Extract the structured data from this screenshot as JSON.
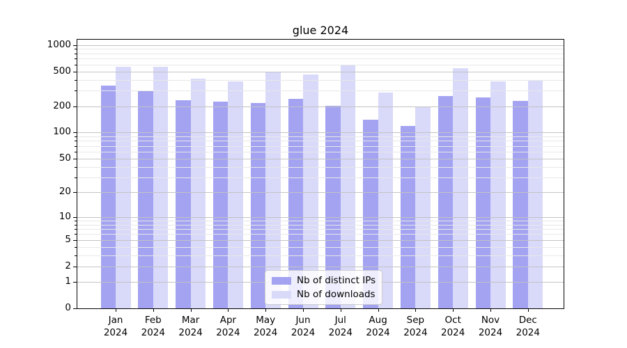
{
  "chart_data": {
    "type": "bar",
    "title": "glue 2024",
    "categories": [
      "Jan",
      "Feb",
      "Mar",
      "Apr",
      "May",
      "Jun",
      "Jul",
      "Aug",
      "Sep",
      "Oct",
      "Nov",
      "Dec"
    ],
    "xtick_year": "2024",
    "series": [
      {
        "name": "Nb of distinct IPs",
        "color": "#a3a3f2",
        "values": [
          344,
          297,
          236,
          227,
          216,
          241,
          201,
          139,
          119,
          260,
          250,
          230
        ]
      },
      {
        "name": "Nb of downloads",
        "color": "#d9d9fa",
        "values": [
          566,
          566,
          410,
          382,
          496,
          461,
          597,
          285,
          200,
          540,
          383,
          397
        ]
      }
    ],
    "yscale": "log1p",
    "ylim": [
      0,
      1150
    ],
    "yticks": [
      0,
      1,
      2,
      5,
      10,
      20,
      50,
      100,
      200,
      500,
      1000
    ],
    "minor_gridlines": [
      3,
      4,
      6,
      7,
      8,
      9,
      30,
      40,
      60,
      70,
      80,
      90,
      300,
      400,
      600,
      700,
      800,
      900
    ],
    "grid": true,
    "legend": {
      "position": "lower center"
    }
  },
  "colors": {
    "bar_distinct_ips": "#a3a3f2",
    "bar_downloads": "#d9d9fa",
    "major_grid": "#c3c3c3",
    "minor_grid": "#e8e8e8",
    "axis": "#000000",
    "legend_border": "#cccccc"
  }
}
